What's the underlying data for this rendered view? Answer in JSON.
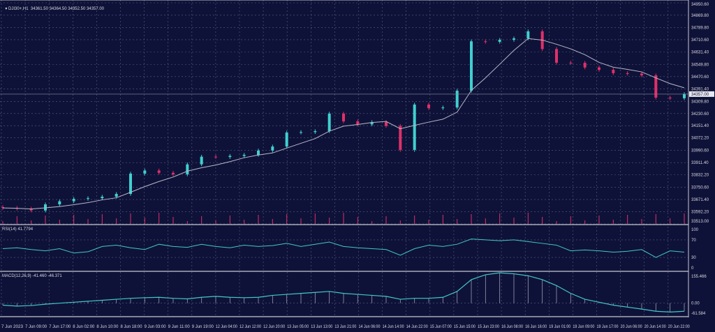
{
  "header": {
    "symbol": "DJI30+,H1",
    "ohlc": "34361.50 34364.50 34352.50 34357.00"
  },
  "rsi_label": "RSI(14) 41.7794",
  "macd_label": "MACD(12,26,9) -41.460 -46.371",
  "colors": {
    "background": "#0f1238",
    "bull": "#40d0d0",
    "bear": "#e0306a",
    "ma": "#b8b8c8",
    "rsi": "#40c8c8",
    "macd": "#40c8c8",
    "grid": "#5a5e80"
  },
  "chart_data": [
    {
      "type": "candlestick",
      "title": "DJI30+,H1",
      "ylim": [
        33513.0,
        34950.6
      ],
      "price_ticks": [
        "34950.60",
        "34869.80",
        "34789.80",
        "34710.60",
        "34631.40",
        "34549.80",
        "34470.60",
        "34391.40",
        "34309.80",
        "34230.60",
        "34151.40",
        "34072.20",
        "33990.60",
        "33911.40",
        "33832.20",
        "33750.60",
        "33671.40",
        "33592.20",
        "33513.00"
      ],
      "current_price": "34357.00",
      "time_ticks": [
        "7 Jun 2023",
        "7 Jun 09:00",
        "7 Jun 17:00",
        "8 Jun 02:00",
        "8 Jun 10:00",
        "8 Jun 18:00",
        "9 Jun 03:00",
        "9 Jun 11:00",
        "9 Jun 19:00",
        "12 Jun 04:00",
        "12 Jun 12:00",
        "12 Jun 20:00",
        "13 Jun 05:00",
        "13 Jun 13:00",
        "13 Jun 21:00",
        "14 Jun 06:00",
        "14 Jun 14:00",
        "14 Jun 22:00",
        "15 Jun 07:00",
        "15 Jun 15:00",
        "15 Jun 23:00",
        "16 Jun 08:00",
        "16 Jun 16:00",
        "19 Jun 01:00",
        "19 Jun 09:00",
        "19 Jun 17:00",
        "20 Jun 06:00",
        "20 Jun 14:00",
        "20 Jun 22:00"
      ],
      "close": [
        33617,
        33612,
        33600,
        33640,
        33660,
        33676,
        33680,
        33690,
        33708,
        33840,
        33860,
        33845,
        33835,
        33900,
        33950,
        33948,
        33955,
        33962,
        33990,
        34016,
        34107,
        34110,
        34116,
        34230,
        34180,
        34160,
        34175,
        34150,
        33994,
        34289,
        34266,
        34270,
        34379,
        34700,
        34697,
        34710,
        34719,
        34765,
        34650,
        34561,
        34560,
        34530,
        34515,
        34493,
        34490,
        34479,
        34334,
        34330,
        34357
      ],
      "grid": true
    },
    {
      "type": "line",
      "title": "RSI(14) 41.7794",
      "ylim": [
        0,
        100
      ],
      "y_ticks": [
        "100",
        "70",
        "30",
        "0"
      ],
      "values": [
        50,
        52,
        48,
        45,
        50,
        40,
        43,
        55,
        58,
        52,
        48,
        60,
        55,
        53,
        60,
        55,
        52,
        58,
        55,
        57,
        62,
        55,
        60,
        65,
        55,
        52,
        50,
        48,
        35,
        50,
        58,
        55,
        60,
        72,
        70,
        68,
        70,
        66,
        62,
        58,
        45,
        47,
        45,
        42,
        44,
        48,
        30,
        45,
        42
      ]
    },
    {
      "type": "line",
      "title": "MACD(12,26,9) -41.460 -46.371",
      "ylim": [
        -61.584,
        155.466
      ],
      "y_ticks": [
        "155.466",
        "0.00",
        "-61.584"
      ],
      "values": [
        -10,
        -15,
        -12,
        -5,
        0,
        5,
        10,
        15,
        20,
        25,
        28,
        30,
        25,
        22,
        30,
        35,
        30,
        28,
        30,
        40,
        45,
        50,
        55,
        60,
        50,
        45,
        40,
        35,
        20,
        25,
        25,
        30,
        60,
        120,
        145,
        155,
        150,
        140,
        120,
        90,
        50,
        20,
        5,
        -10,
        -20,
        -30,
        -41,
        -45,
        -41
      ]
    }
  ]
}
